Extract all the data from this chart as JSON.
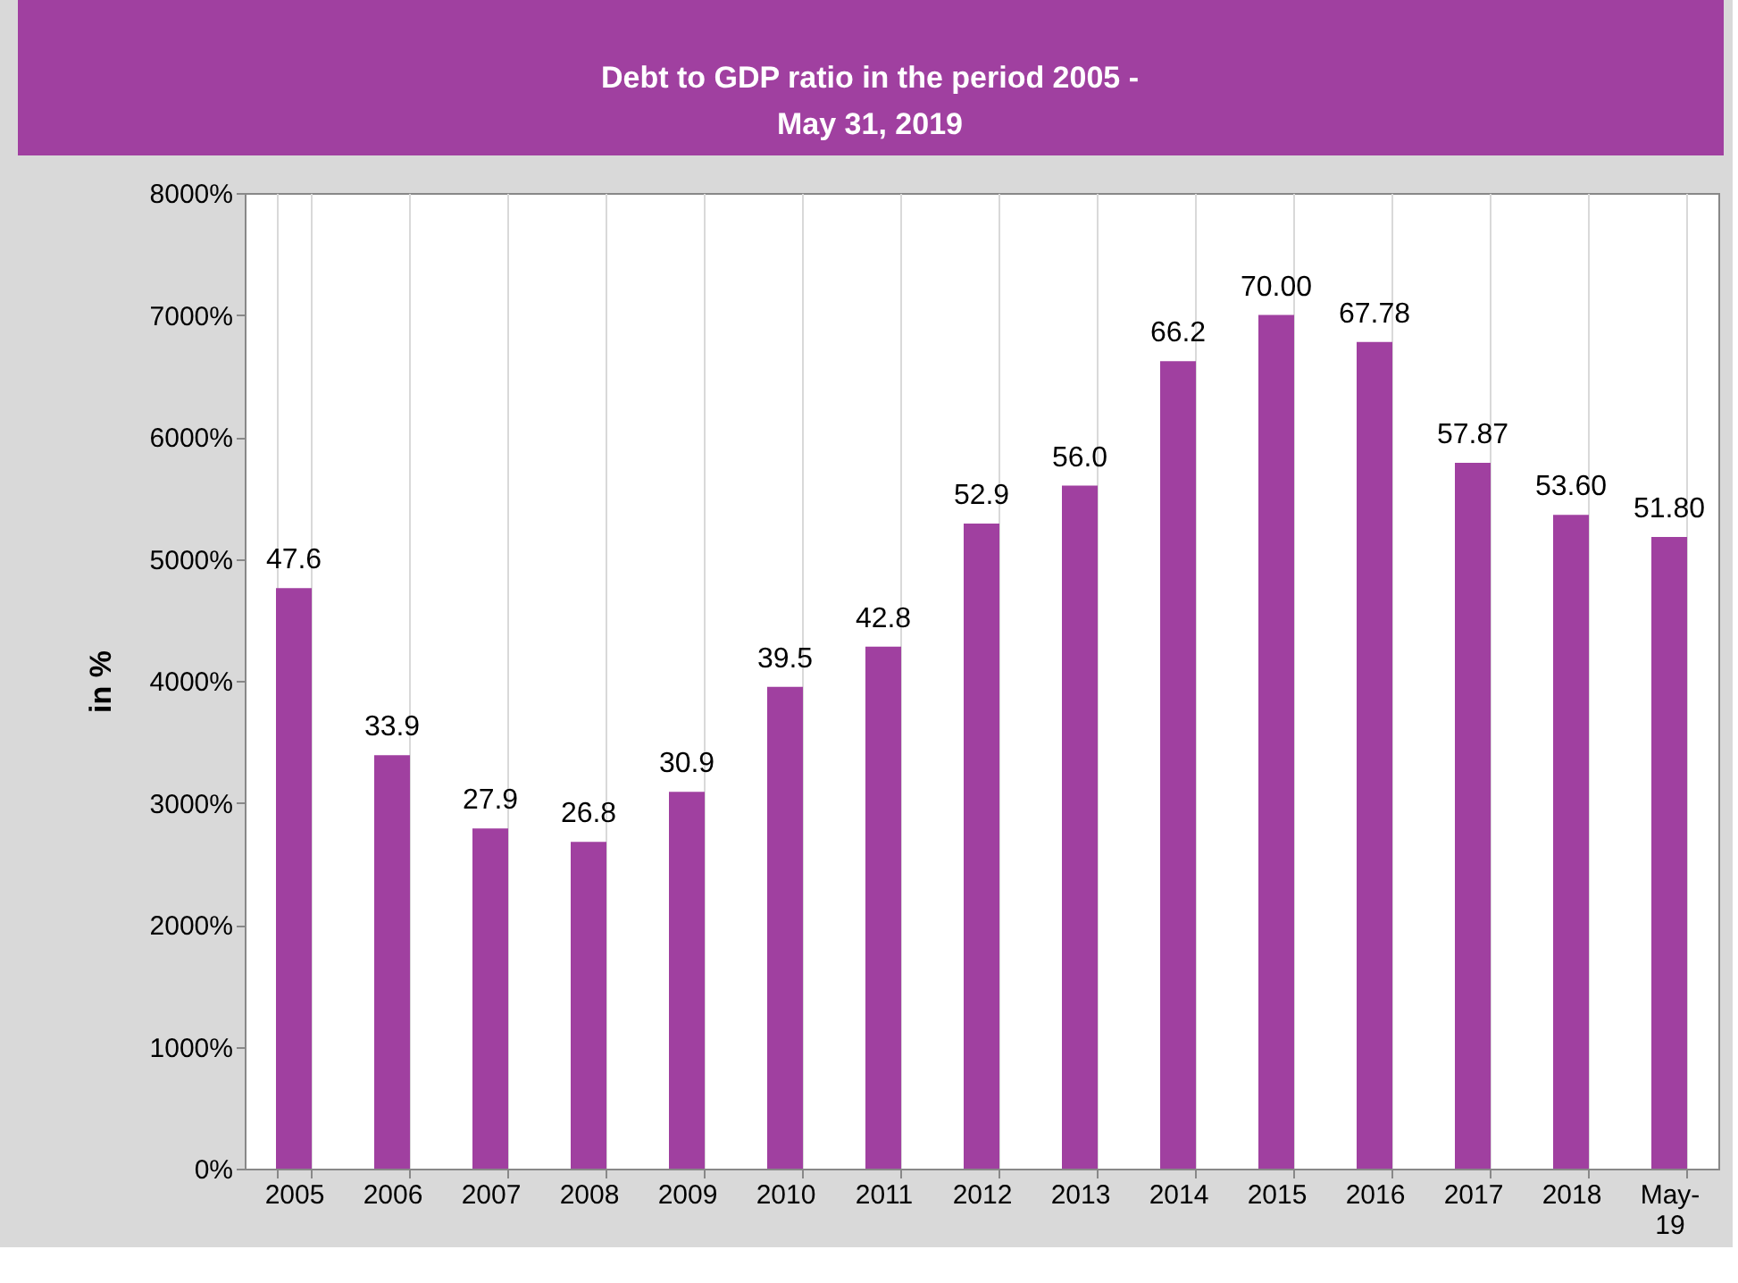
{
  "chart_data": {
    "type": "bar",
    "title": "Debt to GDP ratio in the period 2005 -\nMay 31, 2019",
    "ylabel": "in %",
    "categories": [
      "2005",
      "2006",
      "2007",
      "2008",
      "2009",
      "2010",
      "2011",
      "2012",
      "2013",
      "2014",
      "2015",
      "2016",
      "2017",
      "2018",
      "May-19"
    ],
    "values": [
      47.6,
      33.9,
      27.9,
      26.8,
      30.9,
      39.5,
      42.8,
      52.9,
      56.0,
      66.2,
      70.0,
      67.78,
      57.87,
      53.6,
      51.8
    ],
    "value_labels": [
      "47.6",
      "33.9",
      "27.9",
      "26.8",
      "30.9",
      "39.5",
      "42.8",
      "52.9",
      "56.0",
      "66.2",
      "70.00",
      "67.78",
      "57.87",
      "53.60",
      "51.80"
    ],
    "color": "#a040a0",
    "ylim": [
      0,
      80
    ],
    "yticks": [
      {
        "value": 0,
        "label": "0%"
      },
      {
        "value": 10,
        "label": "1000%"
      },
      {
        "value": 20,
        "label": "2000%"
      },
      {
        "value": 30,
        "label": "3000%"
      },
      {
        "value": 40,
        "label": "4000%"
      },
      {
        "value": 50,
        "label": "5000%"
      },
      {
        "value": 60,
        "label": "6000%"
      },
      {
        "value": 70,
        "label": "7000%"
      },
      {
        "value": 80,
        "label": "8000%"
      }
    ],
    "grid": "x"
  }
}
